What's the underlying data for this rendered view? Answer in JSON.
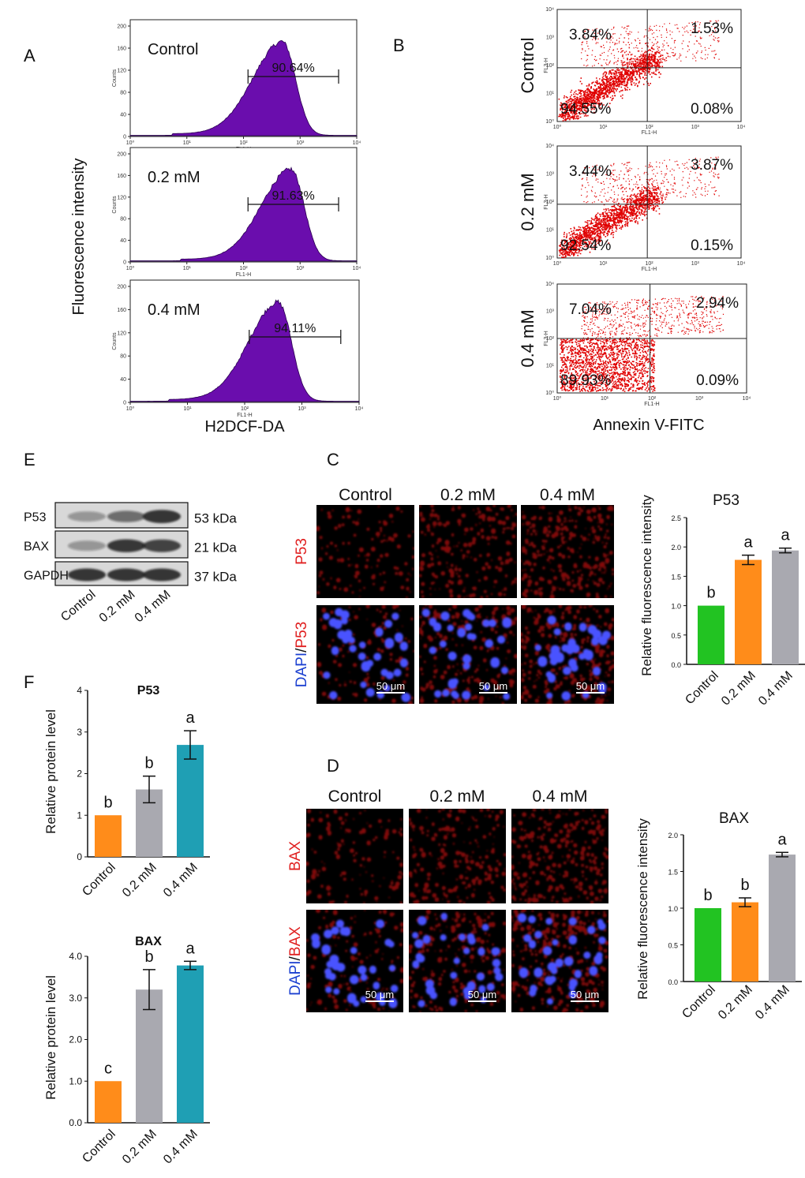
{
  "panels": {
    "A": "A",
    "B": "B",
    "C": "C",
    "D": "D",
    "E": "E",
    "F": "F"
  },
  "panel_a": {
    "ylabel": "Fluorescence intensity",
    "xlabel": "H2DCF-DA",
    "hist_ylabel": "Counts",
    "hist_xlabel": "FL1-H",
    "decade_labels": [
      "10⁰",
      "10¹",
      "10²",
      "10³",
      "10⁴"
    ],
    "histograms": [
      {
        "group": "Control",
        "percent": "90.64%",
        "yticks": [
          "0",
          "40",
          "80",
          "120",
          "160",
          "200"
        ],
        "peak_log": 2.7
      },
      {
        "group": "0.2 mM",
        "percent": "91.63%",
        "yticks": [
          "0",
          "40",
          "80",
          "120",
          "160",
          "200"
        ],
        "peak_log": 2.85
      },
      {
        "group": "0.4 mM",
        "percent": "94.11%",
        "yticks": [
          "0",
          "40",
          "80",
          "120",
          "160",
          "200"
        ],
        "peak_log": 2.6
      }
    ],
    "fill_color": "#6a0dad"
  },
  "panel_b": {
    "xlabel": "Annexin V-FITC",
    "axis_x": "FL1-H",
    "axis_y": "FL3-H",
    "decade_labels": [
      "10⁰",
      "10¹",
      "10²",
      "10³",
      "10⁴"
    ],
    "plots": [
      {
        "group": "Control",
        "ul": "3.84%",
        "ur": "1.53%",
        "ll": "94.55%",
        "lr": "0.08%"
      },
      {
        "group": "0.2 mM",
        "ul": "3.44%",
        "ur": "3.87%",
        "ll": "92.54%",
        "lr": "0.15%"
      },
      {
        "group": "0.4 mM",
        "ul": "7.04%",
        "ur": "2.94%",
        "ll": "89.93%",
        "lr": "0.09%"
      }
    ],
    "dot_color": "#e00000"
  },
  "panel_e": {
    "bands": [
      {
        "protein": "P53",
        "size": "53 kDa"
      },
      {
        "protein": "BAX",
        "size": "21 kDa"
      },
      {
        "protein": "GAPDH",
        "size": "37 kDa"
      }
    ],
    "lanes": [
      "Control",
      "0.2 mM",
      "0.4 mM"
    ]
  },
  "panel_c": {
    "columns": [
      "Control",
      "0.2 mM",
      "0.4 mM"
    ],
    "row1_label": "P53",
    "row2_label_dapi": "DAPI",
    "row2_label_sep": "/",
    "row2_label_marker": "P53",
    "scale_bar": "50 μm"
  },
  "panel_d": {
    "columns": [
      "Control",
      "0.2 mM",
      "0.4 mM"
    ],
    "row1_label": "BAX",
    "row2_label_dapi": "DAPI",
    "row2_label_sep": "/",
    "row2_label_marker": "BAX",
    "scale_bar": "50 μm"
  },
  "chart_data": [
    {
      "id": "c_p53",
      "type": "bar",
      "title": "P53",
      "ylabel": "Relative fluorescence intensity",
      "categories": [
        "Control",
        "0.2 mM",
        "0.4 mM"
      ],
      "values": [
        1.0,
        1.78,
        1.94
      ],
      "errors": [
        0,
        0.08,
        0.04
      ],
      "letters": [
        "b",
        "a",
        "a"
      ],
      "ylim": [
        0,
        2.5
      ],
      "yticks": [
        "0.0",
        "0.5",
        "1.0",
        "1.5",
        "2.0",
        "2.5"
      ],
      "colors": [
        "#22c322",
        "#ff8c1a",
        "#a9a9b0"
      ]
    },
    {
      "id": "d_bax",
      "type": "bar",
      "title": "BAX",
      "ylabel": "Relative fluorescence intensity",
      "categories": [
        "Control",
        "0.2 mM",
        "0.4 mM"
      ],
      "values": [
        1.0,
        1.08,
        1.73
      ],
      "errors": [
        0,
        0.06,
        0.03
      ],
      "letters": [
        "b",
        "b",
        "a"
      ],
      "ylim": [
        0,
        2.0
      ],
      "yticks": [
        "0.0",
        "0.5",
        "1.0",
        "1.5",
        "2.0"
      ],
      "colors": [
        "#22c322",
        "#ff8c1a",
        "#a9a9b0"
      ]
    },
    {
      "id": "f_p53",
      "type": "bar",
      "title": "P53",
      "ylabel": "Relative protein level",
      "categories": [
        "Control",
        "0.2 mM",
        "0.4 mM"
      ],
      "values": [
        1.0,
        1.62,
        2.69
      ],
      "errors": [
        0,
        0.32,
        0.34
      ],
      "letters": [
        "b",
        "b",
        "a"
      ],
      "ylim": [
        0,
        4
      ],
      "yticks": [
        "0",
        "1",
        "2",
        "3",
        "4"
      ],
      "colors": [
        "#ff8c1a",
        "#a9a9b0",
        "#1f9fb4"
      ]
    },
    {
      "id": "f_bax",
      "type": "bar",
      "title": "BAX",
      "ylabel": "Relative protein level",
      "categories": [
        "Control",
        "0.2 mM",
        "0.4 mM"
      ],
      "values": [
        1.0,
        3.2,
        3.78
      ],
      "errors": [
        0,
        0.48,
        0.1
      ],
      "letters": [
        "c",
        "b",
        "a"
      ],
      "ylim": [
        0,
        4
      ],
      "yticks": [
        "0.0",
        "1.0",
        "2.0",
        "3.0",
        "4.0"
      ],
      "colors": [
        "#ff8c1a",
        "#a9a9b0",
        "#1f9fb4"
      ]
    }
  ]
}
